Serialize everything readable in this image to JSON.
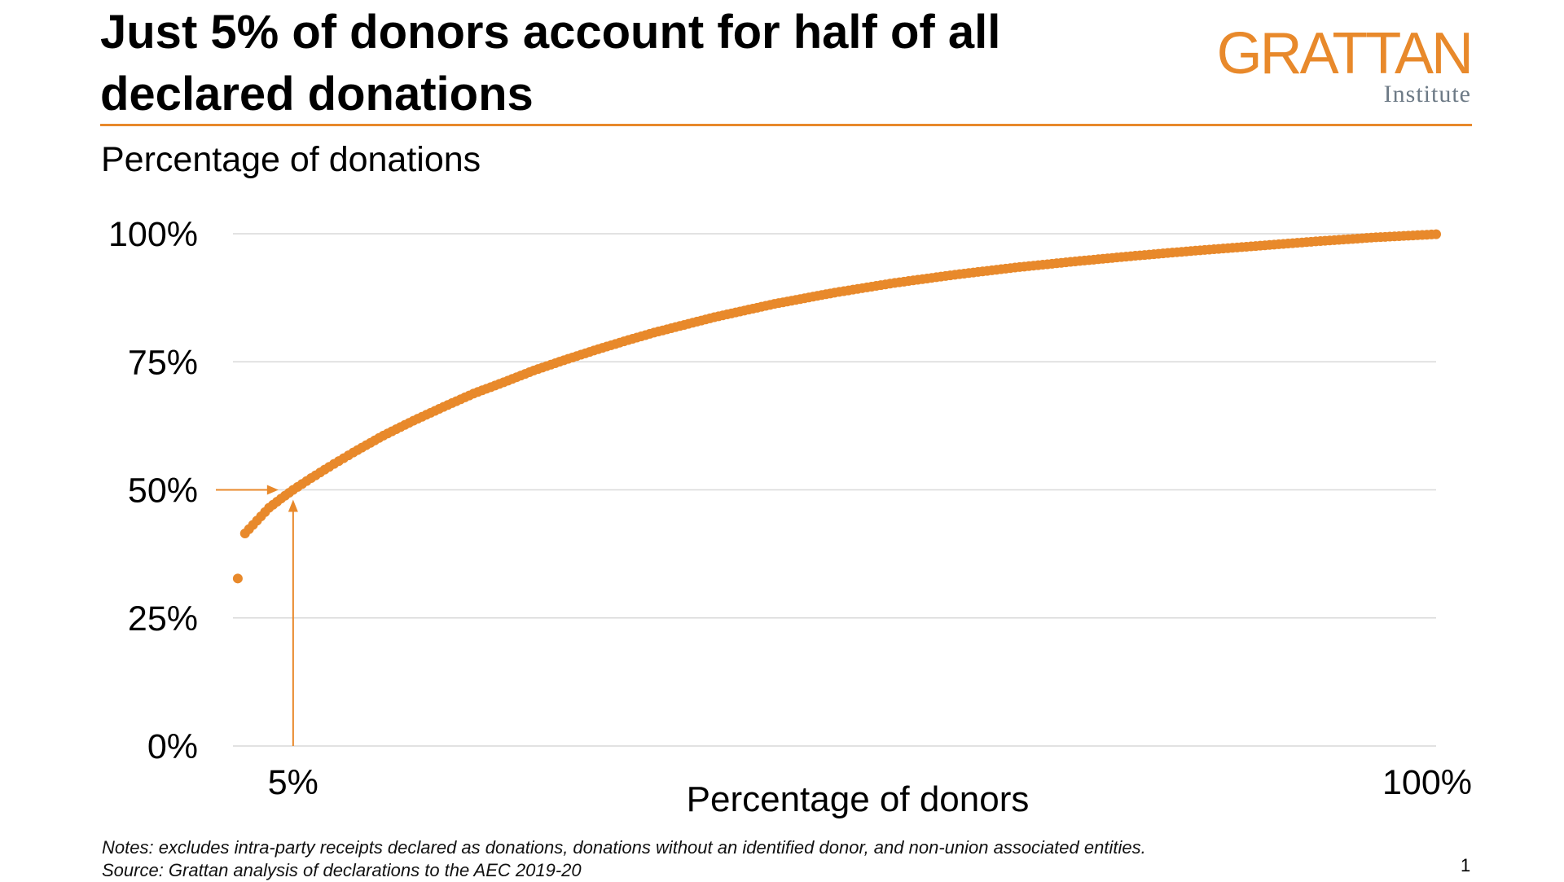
{
  "title": "Just 5% of donors account for half of all declared donations",
  "logo": {
    "main": "GRATTAN",
    "sub": "Institute"
  },
  "subtitle": "Percentage of donations",
  "notes": "Notes: excludes intra-party receipts declared as donations, donations without an identified donor, and non-union associated entities.",
  "source": "Source: Grattan analysis of declarations to the AEC 2019-20",
  "page_number": "1",
  "colors": {
    "accent": "#E8892B",
    "grid": "#d9d9d9",
    "text": "#000000"
  },
  "chart_data": {
    "type": "scatter",
    "title": "Just 5% of donors account for half of all declared donations",
    "xlabel": "Percentage of donors",
    "ylabel": "Percentage of donations",
    "xlim": [
      0,
      100
    ],
    "ylim": [
      0,
      100
    ],
    "x_tick_labels": [
      {
        "value": 5,
        "label": "5%"
      },
      {
        "value": 100,
        "label": "100%"
      }
    ],
    "y_tick_labels": [
      {
        "value": 0,
        "label": "0%"
      },
      {
        "value": 25,
        "label": "25%"
      },
      {
        "value": 50,
        "label": "50%"
      },
      {
        "value": 75,
        "label": "75%"
      },
      {
        "value": 100,
        "label": "100%"
      }
    ],
    "grid": "horizontal",
    "annotation": {
      "x": 5,
      "y": 50,
      "type": "arrows"
    },
    "points": [
      [
        0.4,
        32.7
      ],
      [
        1,
        41.5
      ],
      [
        2,
        44
      ],
      [
        3,
        46.5
      ],
      [
        4,
        48.3
      ],
      [
        5,
        50
      ],
      [
        6.5,
        52.3
      ],
      [
        8,
        54.5
      ],
      [
        10,
        57.3
      ],
      [
        12.5,
        60.6
      ],
      [
        15,
        63.5
      ],
      [
        17.5,
        66.2
      ],
      [
        20,
        68.8
      ],
      [
        22.5,
        71
      ],
      [
        25,
        73.3
      ],
      [
        27.5,
        75.3
      ],
      [
        30,
        77.2
      ],
      [
        32.5,
        79
      ],
      [
        35,
        80.7
      ],
      [
        37.5,
        82.2
      ],
      [
        40,
        83.7
      ],
      [
        42.5,
        85
      ],
      [
        45,
        86.3
      ],
      [
        47.5,
        87.4
      ],
      [
        50,
        88.5
      ],
      [
        55,
        90.4
      ],
      [
        60,
        92
      ],
      [
        65,
        93.4
      ],
      [
        70,
        94.6
      ],
      [
        75,
        95.7
      ],
      [
        80,
        96.7
      ],
      [
        85,
        97.6
      ],
      [
        90,
        98.5
      ],
      [
        95,
        99.3
      ],
      [
        100,
        99.9
      ]
    ]
  }
}
